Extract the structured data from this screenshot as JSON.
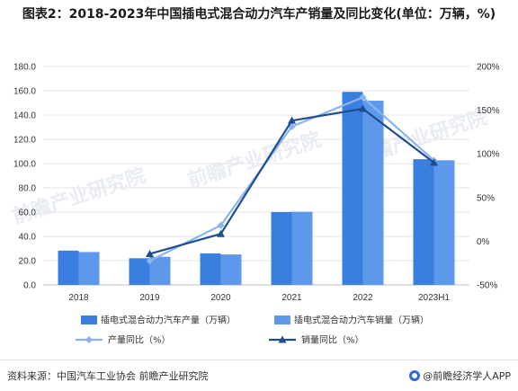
{
  "title": "图表2：2018-2023年中国插电式混合动力汽车产销量及同比变化(单位：万辆，%)",
  "colors": {
    "production_bar": "#3a7fe0",
    "sales_bar": "#5e98ea",
    "production_yoy_line": "#8ab4ee",
    "sales_yoy_line": "#1f4e8c",
    "watermark": "#e9edf3"
  },
  "chart_data": {
    "type": "bar",
    "categories": [
      "2018",
      "2019",
      "2020",
      "2021",
      "2022",
      "2023H1"
    ],
    "y_left": {
      "ticks": [
        "0.0",
        "20.0",
        "40.0",
        "60.0",
        "80.0",
        "100.0",
        "120.0",
        "140.0",
        "160.0",
        "180.0"
      ],
      "ylim": [
        0,
        180
      ]
    },
    "y_right": {
      "ticks": [
        "-50%",
        "0%",
        "50%",
        "100%",
        "150%",
        "200%"
      ],
      "ylim": [
        -50,
        200
      ]
    },
    "series": [
      {
        "name": "插电式混合动力汽车产量（万辆）",
        "type": "bar",
        "axis": "left",
        "values": [
          28.3,
          22.0,
          26.0,
          60.1,
          159.1,
          103.6
        ]
      },
      {
        "name": "插电式混合动力汽车销量（万辆）",
        "type": "bar",
        "axis": "left",
        "values": [
          27.1,
          23.2,
          25.1,
          60.3,
          151.8,
          102.7
        ]
      },
      {
        "name": "产量同比（%）",
        "type": "line",
        "axis": "right",
        "values": [
          null,
          -22.5,
          18.2,
          131.2,
          164.7,
          92.5
        ]
      },
      {
        "name": "销量同比（%）",
        "type": "line",
        "axis": "right",
        "values": [
          null,
          -14.5,
          8.4,
          138.1,
          151.6,
          90.0
        ]
      }
    ],
    "grid": true,
    "legend_position": "bottom"
  },
  "watermarks": [
    "前瞻产业研究院",
    "前瞻产业研究院",
    "前瞻产业研究院"
  ],
  "footer": {
    "source": "资料来源：中国汽车工业协会 前瞻产业研究院",
    "brand": "@前瞻经济学人APP"
  }
}
